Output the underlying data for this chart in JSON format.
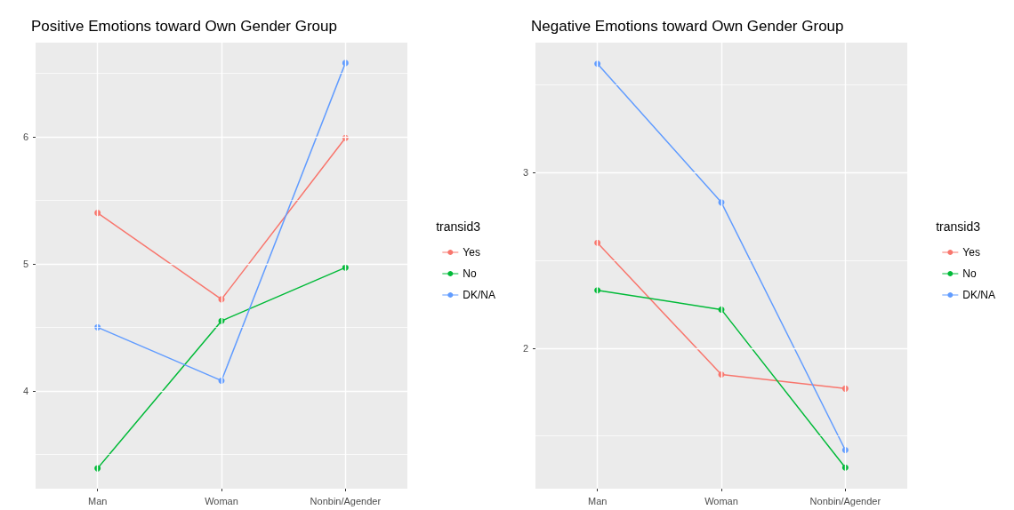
{
  "chart_data": [
    {
      "type": "line",
      "title": "Positive Emotions toward Own Gender Group",
      "legend_title": "transid3",
      "categories": [
        "Man",
        "Woman",
        "Nonbin/Agender"
      ],
      "series": [
        {
          "name": "Yes",
          "color": "#f8766d",
          "values": [
            5.4,
            4.72,
            5.99
          ]
        },
        {
          "name": "No",
          "color": "#00ba38",
          "values": [
            3.39,
            4.55,
            4.97
          ]
        },
        {
          "name": "DK/NA",
          "color": "#619cff",
          "values": [
            4.5,
            4.08,
            6.58
          ]
        }
      ],
      "ylim": [
        3.23,
        6.74
      ],
      "yticks": [
        {
          "value": 3.5,
          "label": null
        },
        4,
        {
          "value": 4.5,
          "label": null
        },
        5,
        {
          "value": 5.5,
          "label": null
        },
        6,
        {
          "value": 6.5,
          "label": null
        }
      ],
      "grid": true,
      "legend": "right",
      "marker": "circle",
      "line_style": "solid"
    },
    {
      "type": "line",
      "title": "Negative Emotions toward Own Gender Group",
      "legend_title": "transid3",
      "categories": [
        "Man",
        "Woman",
        "Nonbin/Agender"
      ],
      "series": [
        {
          "name": "Yes",
          "color": "#f8766d",
          "values": [
            2.6,
            1.85,
            1.77
          ]
        },
        {
          "name": "No",
          "color": "#00ba38",
          "values": [
            2.33,
            2.22,
            1.32
          ]
        },
        {
          "name": "DK/NA",
          "color": "#619cff",
          "values": [
            3.62,
            2.83,
            1.42
          ]
        }
      ],
      "ylim": [
        1.2,
        3.74
      ],
      "yticks": [
        {
          "value": 1.5,
          "label": null
        },
        2,
        {
          "value": 2.5,
          "label": null
        },
        3,
        {
          "value": 3.5,
          "label": null
        }
      ],
      "grid": true,
      "legend": "right",
      "marker": "circle",
      "line_style": "solid"
    }
  ]
}
